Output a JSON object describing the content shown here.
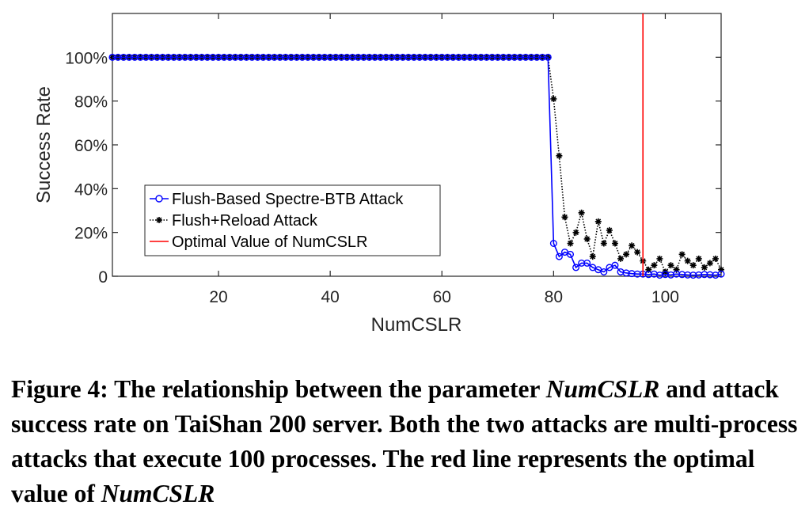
{
  "chart_data": {
    "type": "line",
    "xlabel": "NumCSLR",
    "ylabel": "Success Rate",
    "xlim": [
      1,
      110
    ],
    "ylim": [
      0,
      1.2
    ],
    "x_ticks": [
      20,
      40,
      60,
      80,
      100
    ],
    "x_tick_labels": [
      "20",
      "40",
      "60",
      "80",
      "100"
    ],
    "y_ticks": [
      0,
      0.2,
      0.4,
      0.6,
      0.8,
      1.0
    ],
    "y_tick_labels": [
      "0",
      "20%",
      "40%",
      "60%",
      "80%",
      "100%"
    ],
    "grid": false,
    "legend_position": "lower-left",
    "series": [
      {
        "name": "Flush-Based Spectre-BTB Attack",
        "color": "#0000ff",
        "marker": "circle",
        "line_style": "solid",
        "x_start": 1,
        "values": [
          1,
          1,
          1,
          1,
          1,
          1,
          1,
          1,
          1,
          1,
          1,
          1,
          1,
          1,
          1,
          1,
          1,
          1,
          1,
          1,
          1,
          1,
          1,
          1,
          1,
          1,
          1,
          1,
          1,
          1,
          1,
          1,
          1,
          1,
          1,
          1,
          1,
          1,
          1,
          1,
          1,
          1,
          1,
          1,
          1,
          1,
          1,
          1,
          1,
          1,
          1,
          1,
          1,
          1,
          1,
          1,
          1,
          1,
          1,
          1,
          1,
          1,
          1,
          1,
          1,
          1,
          1,
          1,
          1,
          1,
          1,
          1,
          1,
          1,
          1,
          1,
          1,
          1,
          1,
          0.15,
          0.09,
          0.11,
          0.1,
          0.04,
          0.06,
          0.06,
          0.04,
          0.03,
          0.02,
          0.04,
          0.05,
          0.02,
          0.015,
          0.012,
          0.01,
          0.01,
          0.008,
          0.01,
          0.005,
          0.008,
          0.006,
          0.01,
          0.008,
          0.006,
          0.005,
          0.006,
          0.008,
          0.007,
          0.005,
          0.01
        ]
      },
      {
        "name": "Flush+Reload Attack",
        "color": "#000000",
        "marker": "star",
        "line_style": "dotted",
        "x_start": 1,
        "values": [
          1,
          1,
          1,
          1,
          1,
          1,
          1,
          1,
          1,
          1,
          1,
          1,
          1,
          1,
          1,
          1,
          1,
          1,
          1,
          1,
          1,
          1,
          1,
          1,
          1,
          1,
          1,
          1,
          1,
          1,
          1,
          1,
          1,
          1,
          1,
          1,
          1,
          1,
          1,
          1,
          1,
          1,
          1,
          1,
          1,
          1,
          1,
          1,
          1,
          1,
          1,
          1,
          1,
          1,
          1,
          1,
          1,
          1,
          1,
          1,
          1,
          1,
          1,
          1,
          1,
          1,
          1,
          1,
          1,
          1,
          1,
          1,
          1,
          1,
          1,
          1,
          1,
          1,
          1,
          0.81,
          0.55,
          0.27,
          0.15,
          0.2,
          0.29,
          0.17,
          0.09,
          0.25,
          0.15,
          0.21,
          0.15,
          0.08,
          0.1,
          0.14,
          0.11,
          0.07,
          0.03,
          0.05,
          0.08,
          0.02,
          0.05,
          0.03,
          0.1,
          0.07,
          0.05,
          0.08,
          0.04,
          0.06,
          0.08,
          0.03
        ]
      },
      {
        "name": "Optimal Value of NumCSLR",
        "color": "#ff0000",
        "type": "vertical-line",
        "x": 96
      }
    ]
  },
  "caption": {
    "part1": "Figure 4: The relationship between the parameter ",
    "em1": "NumCSLR",
    "part2": " and attack success rate on TaiShan 200 server. Both the two attacks are multi-process attacks that execute 100 processes. The red line represents the optimal value of ",
    "em2": "NumCSLR"
  }
}
